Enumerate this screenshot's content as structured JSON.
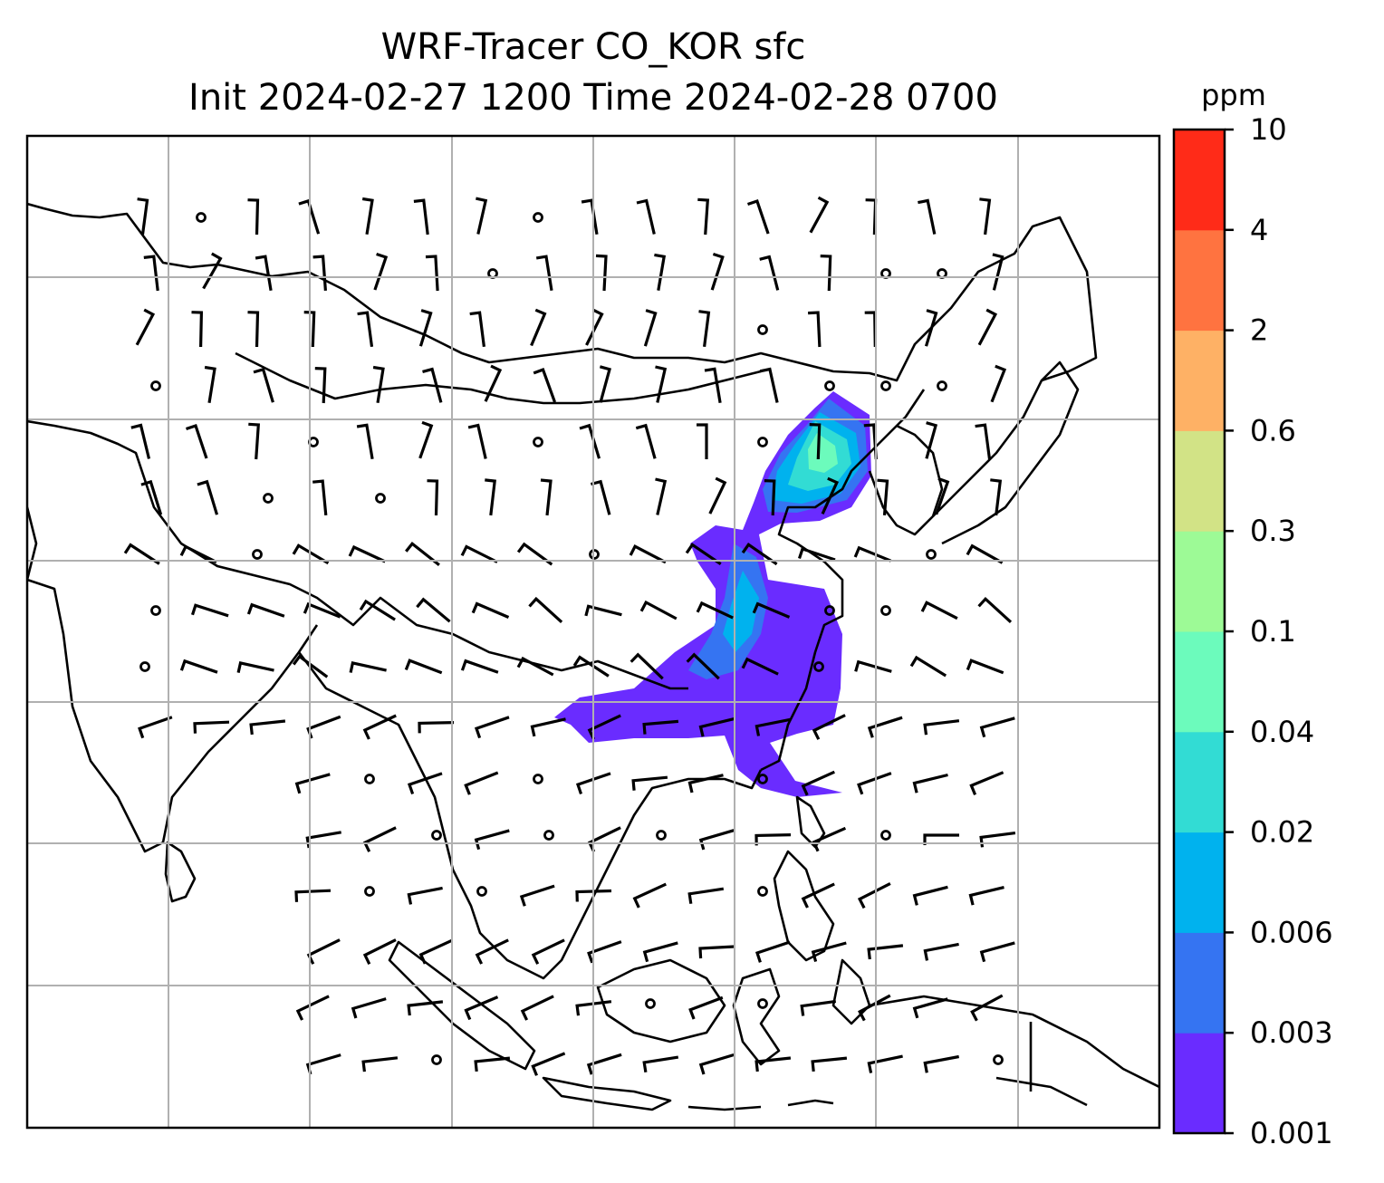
{
  "title": {
    "line1": "WRF-Tracer CO_KOR sfc",
    "line2": "Init 2024-02-27 1200 Time 2024-02-28 0700"
  },
  "colorbar": {
    "unit": "ppm",
    "levels": [
      "0.001",
      "0.003",
      "0.006",
      "0.02",
      "0.04",
      "0.1",
      "0.3",
      "0.6",
      "2",
      "4",
      "10"
    ],
    "colors": [
      "#6a2cff",
      "#3574f2",
      "#00b2ee",
      "#32dcd4",
      "#6cfbbc",
      "#9dfa96",
      "#d2e386",
      "#feb165",
      "#ff7340",
      "#ff2b18"
    ]
  },
  "map": {
    "grid": true,
    "overlay": "wind barbs",
    "shaded_field": "CO_KOR surface tracer concentration"
  }
}
